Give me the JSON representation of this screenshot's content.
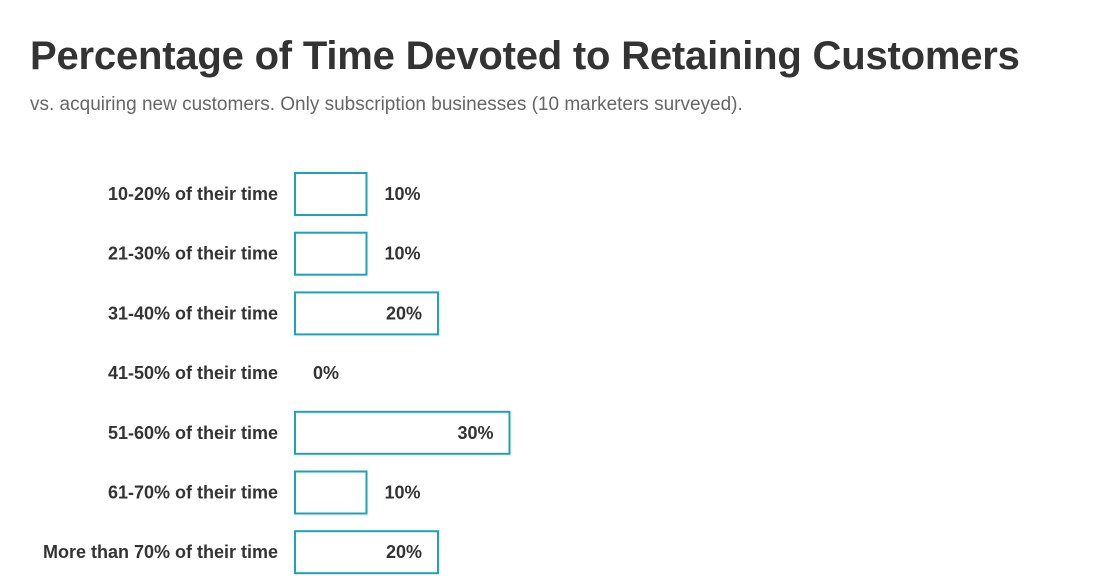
{
  "chart_data": {
    "type": "bar",
    "orientation": "horizontal",
    "title": "Percentage of Time Devoted to Retaining Customers",
    "subtitle": "vs. acquiring new customers. Only subscription businesses (10 marketers surveyed).",
    "categories": [
      "10-20% of their time",
      "21-30% of their time",
      "31-40% of their time",
      "41-50% of their time",
      "51-60% of their time",
      "61-70% of their time",
      "More than 70% of their time"
    ],
    "values": [
      10,
      10,
      20,
      0,
      30,
      10,
      20
    ],
    "value_labels": [
      "10%",
      "10%",
      "20%",
      "0%",
      "30%",
      "10%",
      "20%"
    ],
    "xlim": [
      0,
      100
    ],
    "grid": false,
    "colors": {
      "bar_stroke": "#1ea3b5",
      "bar_fill": "#ffffff",
      "text": "#333333",
      "subtitle": "#666666"
    }
  }
}
